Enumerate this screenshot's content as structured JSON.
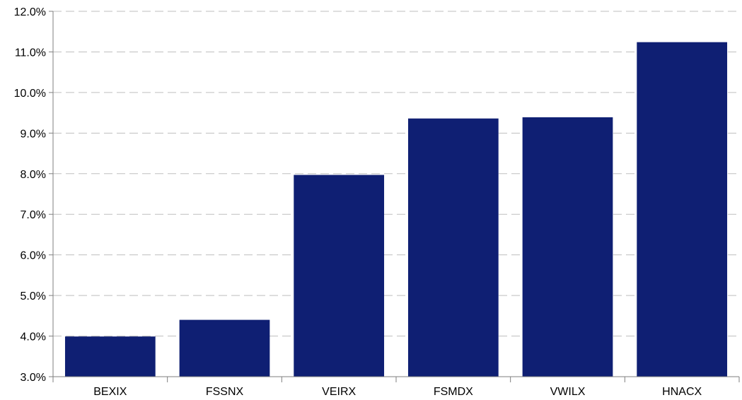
{
  "chart_data": {
    "type": "bar",
    "title": "",
    "xlabel": "",
    "ylabel": "",
    "categories": [
      "BEXIX",
      "FSSNX",
      "VEIRX",
      "FSMDX",
      "VWILX",
      "HNACX"
    ],
    "values": [
      3.99,
      4.4,
      7.97,
      9.36,
      9.39,
      11.24
    ],
    "ylim": [
      3.0,
      12.0
    ],
    "yticks": [
      3.0,
      4.0,
      5.0,
      6.0,
      7.0,
      8.0,
      9.0,
      10.0,
      11.0,
      12.0
    ],
    "ytick_labels": [
      "3.0%",
      "4.0%",
      "5.0%",
      "6.0%",
      "7.0%",
      "8.0%",
      "9.0%",
      "10.0%",
      "11.0%",
      "12.0%"
    ],
    "grid": true,
    "bar_color": "#0f1f73"
  }
}
